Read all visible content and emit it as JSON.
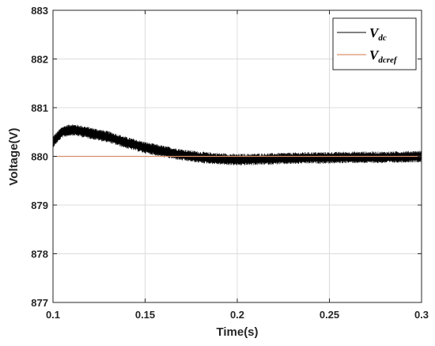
{
  "chart_data": {
    "type": "line",
    "title": "",
    "xlabel": "Time(s)",
    "ylabel": "Voltage(V)",
    "xlim": [
      0.1,
      0.3
    ],
    "ylim": [
      877,
      883
    ],
    "xticks": [
      0.1,
      0.15,
      0.2,
      0.25,
      0.3
    ],
    "xtick_labels": [
      "0.1",
      "0.15",
      "0.2",
      "0.25",
      "0.3"
    ],
    "yticks": [
      877,
      878,
      879,
      880,
      881,
      882,
      883
    ],
    "ytick_labels": [
      "877",
      "878",
      "879",
      "880",
      "881",
      "882",
      "883"
    ],
    "grid": true,
    "legend_position": "top-right",
    "series": [
      {
        "name": "V_dc",
        "label_main": "V",
        "label_sub": "dc",
        "color": "#000000",
        "style": "noisy",
        "x": [
          0.1,
          0.105,
          0.11,
          0.115,
          0.12,
          0.13,
          0.14,
          0.15,
          0.16,
          0.17,
          0.18,
          0.19,
          0.2,
          0.21,
          0.22,
          0.23,
          0.24,
          0.25,
          0.26,
          0.27,
          0.28,
          0.29,
          0.3
        ],
        "y": [
          880.3,
          880.5,
          880.55,
          880.52,
          880.48,
          880.4,
          880.28,
          880.18,
          880.1,
          880.03,
          879.98,
          879.95,
          879.93,
          879.94,
          879.95,
          879.96,
          879.97,
          879.97,
          879.98,
          879.98,
          879.98,
          879.99,
          880.0
        ],
        "ripple_amplitude": 0.12
      },
      {
        "name": "V_dcref",
        "label_main": "V",
        "label_sub": "dcref",
        "color": "#d9906b",
        "style": "solid",
        "x": [
          0.1,
          0.3
        ],
        "y": [
          880,
          880
        ]
      }
    ]
  }
}
